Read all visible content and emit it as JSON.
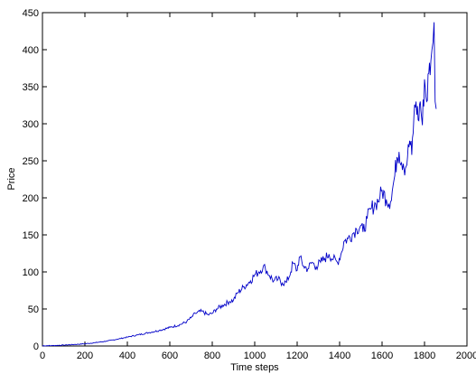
{
  "chart_data": {
    "type": "line",
    "title": "",
    "xlabel": "Time steps",
    "ylabel": "Price",
    "xlim": [
      0,
      2000
    ],
    "ylim": [
      0,
      450
    ],
    "xticks": [
      0,
      200,
      400,
      600,
      800,
      1000,
      1200,
      1400,
      1600,
      1800,
      2000
    ],
    "yticks": [
      0,
      50,
      100,
      150,
      200,
      250,
      300,
      350,
      400,
      450
    ],
    "grid": false,
    "legend": "none",
    "colors": {
      "series": "#0000c8",
      "axes": "#000000",
      "background": "#ffffff"
    },
    "series": [
      {
        "x": [
          0,
          50,
          100,
          150,
          200,
          250,
          300,
          350,
          400,
          450,
          500,
          550,
          600,
          650,
          680,
          700,
          720,
          750,
          780,
          800,
          820,
          850,
          880,
          900,
          920,
          950,
          980,
          1000,
          1020,
          1040,
          1050,
          1070,
          1090,
          1110,
          1130,
          1150,
          1170,
          1180,
          1200,
          1210,
          1230,
          1250,
          1270,
          1290,
          1310,
          1330,
          1350,
          1370,
          1390,
          1410,
          1420,
          1440,
          1460,
          1480,
          1500,
          1510,
          1530,
          1550,
          1570,
          1590,
          1600,
          1620,
          1640,
          1660,
          1670,
          1680,
          1700,
          1710,
          1720,
          1730,
          1740,
          1750,
          1760,
          1770,
          1780,
          1790,
          1800,
          1810,
          1820,
          1830,
          1835,
          1840,
          1845,
          1850,
          1855
        ],
        "y": [
          0.3,
          0.6,
          1.2,
          2,
          3,
          4.5,
          6.5,
          9,
          12,
          15,
          18,
          21,
          25,
          29,
          33,
          38,
          44,
          47,
          42,
          44,
          50,
          55,
          60,
          62,
          72,
          80,
          88,
          96,
          100,
          107,
          105,
          95,
          88,
          90,
          85,
          86,
          100,
          112,
          102,
          120,
          108,
          104,
          113,
          107,
          113,
          118,
          124,
          117,
          113,
          127,
          141,
          145,
          151,
          158,
          163,
          154,
          172,
          186,
          192,
          201,
          210,
          198,
          195,
          230,
          255,
          262,
          246,
          240,
          255,
          277,
          258,
          310,
          330,
          305,
          330,
          298,
          360,
          330,
          368,
          385,
          400,
          410,
          437,
          330,
          320
        ]
      }
    ]
  }
}
